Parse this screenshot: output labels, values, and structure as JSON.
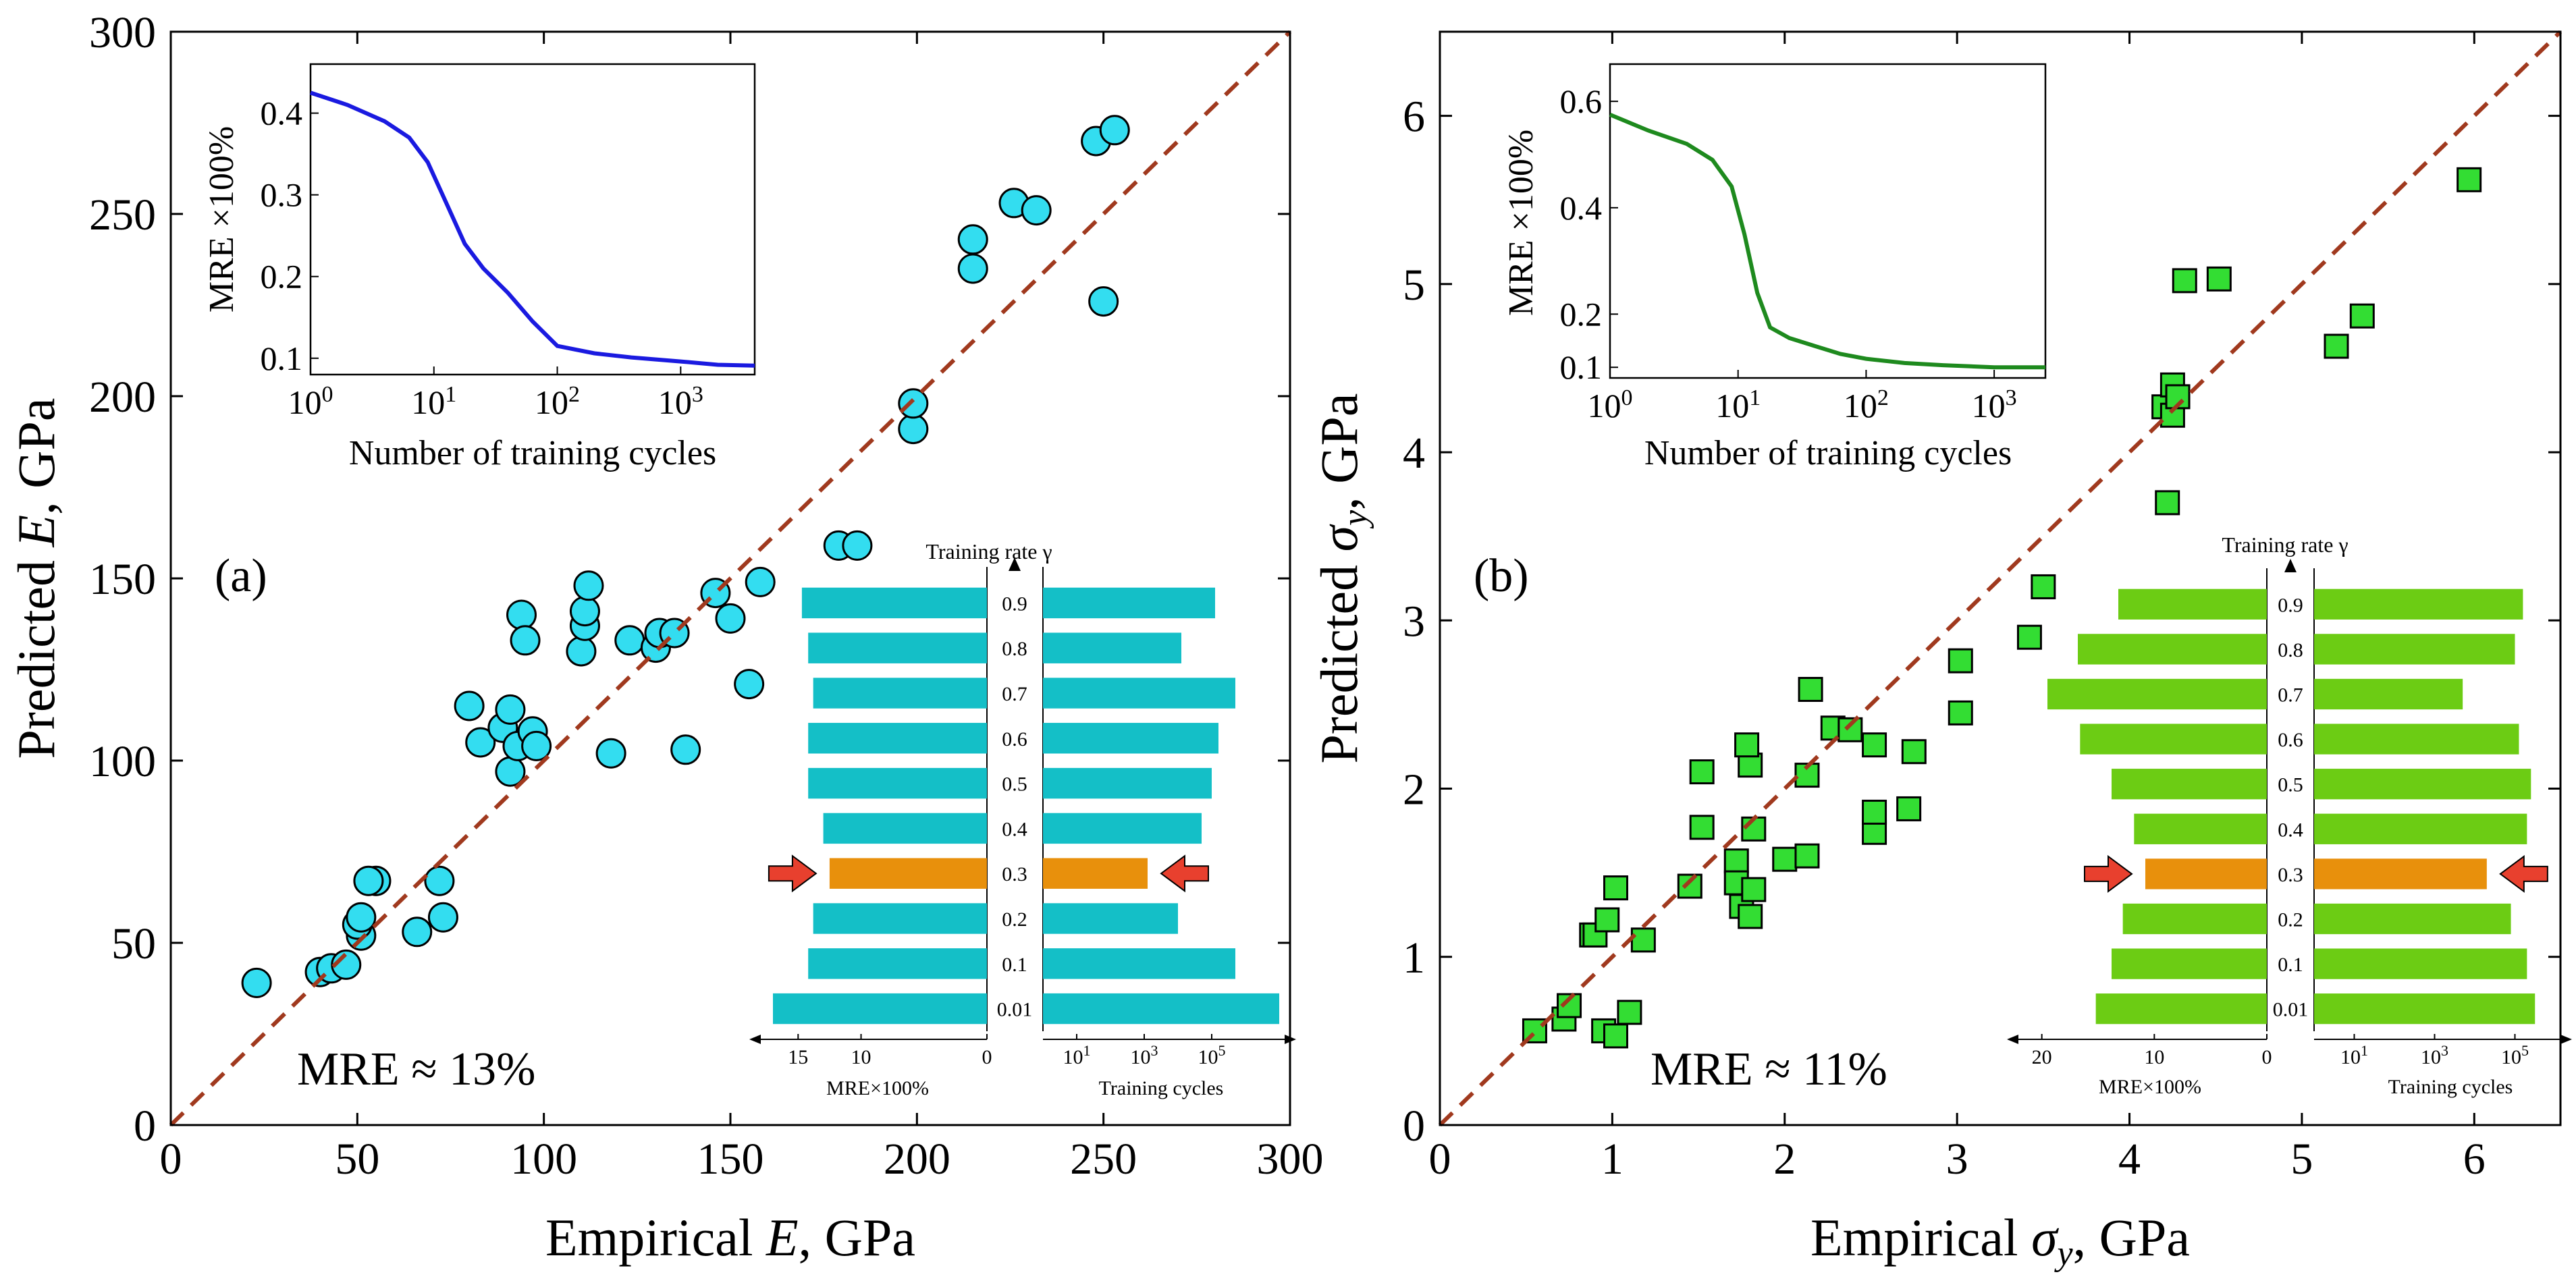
{
  "chart_data": [
    {
      "panel": "a",
      "type": "scatter",
      "panel_label": "(a)",
      "xlabel": "Empirical E, GPa",
      "xlabel_parts": [
        "Empirical ",
        "E",
        ", GPa"
      ],
      "ylabel": "Predicted E, GPa",
      "ylabel_parts": [
        "Predicted ",
        "E",
        ", GPa"
      ],
      "xlim": [
        0,
        300
      ],
      "ylim": [
        0,
        300
      ],
      "xticks": [
        "0",
        "50",
        "100",
        "150",
        "200",
        "250",
        "300"
      ],
      "yticks": [
        "0",
        "50",
        "100",
        "150",
        "200",
        "250",
        "300"
      ],
      "marker": "circle",
      "marker_color": "#33ddf0",
      "diagonal_color": "#a0391e",
      "mre_text": "MRE ≈ 13%",
      "points": [
        [
          23,
          39
        ],
        [
          40,
          42
        ],
        [
          43,
          43
        ],
        [
          47,
          44
        ],
        [
          51,
          52
        ],
        [
          50,
          55
        ],
        [
          51,
          57
        ],
        [
          55,
          67
        ],
        [
          53,
          67
        ],
        [
          66,
          53
        ],
        [
          73,
          57
        ],
        [
          72,
          67
        ],
        [
          80,
          115
        ],
        [
          83,
          105
        ],
        [
          89,
          109
        ],
        [
          91,
          114
        ],
        [
          91,
          97
        ],
        [
          93,
          104
        ],
        [
          94,
          140
        ],
        [
          95,
          133
        ],
        [
          97,
          108
        ],
        [
          98,
          104
        ],
        [
          110,
          130
        ],
        [
          111,
          137
        ],
        [
          111,
          141
        ],
        [
          112,
          148
        ],
        [
          118,
          102
        ],
        [
          123,
          133
        ],
        [
          130,
          131
        ],
        [
          131,
          135
        ],
        [
          135,
          135
        ],
        [
          138,
          103
        ],
        [
          146,
          146
        ],
        [
          150,
          139
        ],
        [
          155,
          121
        ],
        [
          158,
          149
        ],
        [
          179,
          159
        ],
        [
          184,
          159
        ],
        [
          199,
          191
        ],
        [
          199,
          198
        ],
        [
          215,
          243
        ],
        [
          215,
          235
        ],
        [
          226,
          253
        ],
        [
          232,
          251
        ],
        [
          248,
          270
        ],
        [
          250,
          226
        ],
        [
          253,
          273
        ]
      ],
      "inset_line": {
        "xlabel": "Number of training cycles",
        "ylabel": "MRE ×100%",
        "xscale": "log",
        "xlim_exp": [
          0,
          3.6
        ],
        "xticks_exp": [
          0,
          1,
          2,
          3
        ],
        "ylim": [
          0.08,
          0.46
        ],
        "yticks": [
          "0.1",
          "0.2",
          "0.3",
          "0.4"
        ],
        "color": "#1a1ae0",
        "log10x": [
          0,
          0.3,
          0.6,
          0.8,
          0.95,
          1.1,
          1.25,
          1.4,
          1.6,
          1.8,
          2.0,
          2.3,
          2.6,
          3.0,
          3.3,
          3.6
        ],
        "y": [
          0.425,
          0.41,
          0.39,
          0.37,
          0.34,
          0.29,
          0.24,
          0.21,
          0.18,
          0.145,
          0.115,
          0.106,
          0.101,
          0.096,
          0.092,
          0.091
        ]
      },
      "inset_bars": {
        "title": "Training rate γ",
        "categories": [
          "0.9",
          "0.8",
          "0.7",
          "0.6",
          "0.5",
          "0.4",
          "0.3",
          "0.2",
          "0.1",
          "0.01"
        ],
        "highlight": "0.3",
        "bar_color": "#14bfc7",
        "highlight_color": "#e8900c",
        "arrow_color": "#e8402e",
        "left_label": "MRE×100%",
        "left_ticks": [
          "15",
          "10",
          "0"
        ],
        "left_max": 17,
        "left_values": [
          14.7,
          14.2,
          13.8,
          14.2,
          14.2,
          13.0,
          12.5,
          13.8,
          14.2,
          17.0
        ],
        "right_label": "Training cycles",
        "right_ticks_exp": [
          1,
          3,
          5
        ],
        "right_max_exp": 7.0,
        "right_values_exp": [
          5.1,
          4.1,
          5.7,
          5.2,
          5.0,
          4.7,
          3.1,
          4.0,
          5.7,
          7.0
        ]
      }
    },
    {
      "panel": "b",
      "type": "scatter",
      "panel_label": "(b)",
      "xlabel": "Empirical σy, GPa",
      "xlabel_parts": [
        "Empirical ",
        "σ",
        "y",
        ", GPa"
      ],
      "ylabel": "Predicted σy, GPa",
      "ylabel_parts": [
        "Predicted ",
        "σ",
        "y",
        ", GPa"
      ],
      "xlim": [
        0,
        6.5
      ],
      "ylim": [
        0,
        6.5
      ],
      "xticks": [
        "0",
        "1",
        "2",
        "3",
        "4",
        "5",
        "6"
      ],
      "yticks": [
        "0",
        "1",
        "2",
        "3",
        "4",
        "5",
        "6"
      ],
      "marker": "square",
      "marker_color": "#33dd33",
      "diagonal_color": "#a0391e",
      "mre_text": "MRE ≈ 11%",
      "points": [
        [
          0.55,
          0.56
        ],
        [
          0.72,
          0.63
        ],
        [
          0.75,
          0.71
        ],
        [
          0.95,
          0.56
        ],
        [
          1.02,
          0.53
        ],
        [
          1.1,
          0.67
        ],
        [
          0.88,
          1.13
        ],
        [
          0.9,
          1.13
        ],
        [
          0.97,
          1.22
        ],
        [
          1.02,
          1.41
        ],
        [
          1.18,
          1.1
        ],
        [
          1.45,
          1.42
        ],
        [
          1.52,
          1.77
        ],
        [
          1.52,
          2.1
        ],
        [
          1.72,
          1.57
        ],
        [
          1.72,
          1.44
        ],
        [
          1.75,
          1.3
        ],
        [
          1.8,
          1.24
        ],
        [
          1.82,
          1.4
        ],
        [
          1.82,
          1.76
        ],
        [
          1.8,
          2.14
        ],
        [
          1.78,
          2.26
        ],
        [
          2.0,
          1.58
        ],
        [
          2.13,
          1.6
        ],
        [
          2.13,
          2.08
        ],
        [
          2.15,
          2.59
        ],
        [
          2.28,
          2.36
        ],
        [
          2.38,
          2.35
        ],
        [
          2.52,
          1.74
        ],
        [
          2.52,
          1.86
        ],
        [
          2.52,
          2.26
        ],
        [
          2.72,
          1.88
        ],
        [
          2.75,
          2.22
        ],
        [
          3.02,
          2.45
        ],
        [
          3.02,
          2.76
        ],
        [
          3.42,
          2.9
        ],
        [
          3.5,
          3.2
        ],
        [
          4.22,
          3.7
        ],
        [
          4.2,
          4.27
        ],
        [
          4.25,
          4.22
        ],
        [
          4.25,
          4.4
        ],
        [
          4.28,
          4.33
        ],
        [
          4.32,
          5.02
        ],
        [
          4.52,
          5.03
        ],
        [
          5.2,
          4.63
        ],
        [
          5.35,
          4.81
        ],
        [
          5.97,
          5.62
        ]
      ],
      "inset_line": {
        "xlabel": "Number of training cycles",
        "ylabel": "MRE ×100%",
        "xscale": "log",
        "xlim_exp": [
          0,
          3.4
        ],
        "xticks_exp": [
          0,
          1,
          2,
          3
        ],
        "ylim": [
          0.08,
          0.67
        ],
        "yticks": [
          "0.1",
          "0.2",
          "0.4",
          "0.6"
        ],
        "ytick_vals": [
          0.1,
          0.2,
          0.4,
          0.6
        ],
        "color": "#1e8a1e",
        "log10x": [
          0,
          0.3,
          0.6,
          0.8,
          0.95,
          1.05,
          1.15,
          1.25,
          1.4,
          1.6,
          1.8,
          2.0,
          2.3,
          2.6,
          3.0,
          3.4
        ],
        "y": [
          0.575,
          0.545,
          0.52,
          0.49,
          0.44,
          0.35,
          0.24,
          0.175,
          0.155,
          0.14,
          0.125,
          0.116,
          0.108,
          0.104,
          0.1,
          0.1
        ]
      },
      "inset_bars": {
        "title": "Training rate γ",
        "categories": [
          "0.9",
          "0.8",
          "0.7",
          "0.6",
          "0.5",
          "0.4",
          "0.3",
          "0.2",
          "0.1",
          "0.01"
        ],
        "highlight": "0.3",
        "bar_color": "#6ccc14",
        "highlight_color": "#e8900c",
        "arrow_color": "#e8402e",
        "left_label": "MRE×100%",
        "left_ticks": [
          "20",
          "10",
          "0"
        ],
        "left_max": 21,
        "left_values": [
          13.2,
          16.8,
          19.5,
          16.6,
          13.8,
          11.8,
          10.8,
          12.8,
          13.8,
          15.2
        ],
        "right_label": "Training cycles",
        "right_ticks_exp": [
          1,
          3,
          5
        ],
        "right_max_exp": 6.0,
        "right_values_exp": [
          5.2,
          5.0,
          3.7,
          5.1,
          5.4,
          5.3,
          4.3,
          4.9,
          5.3,
          5.5
        ]
      }
    }
  ]
}
